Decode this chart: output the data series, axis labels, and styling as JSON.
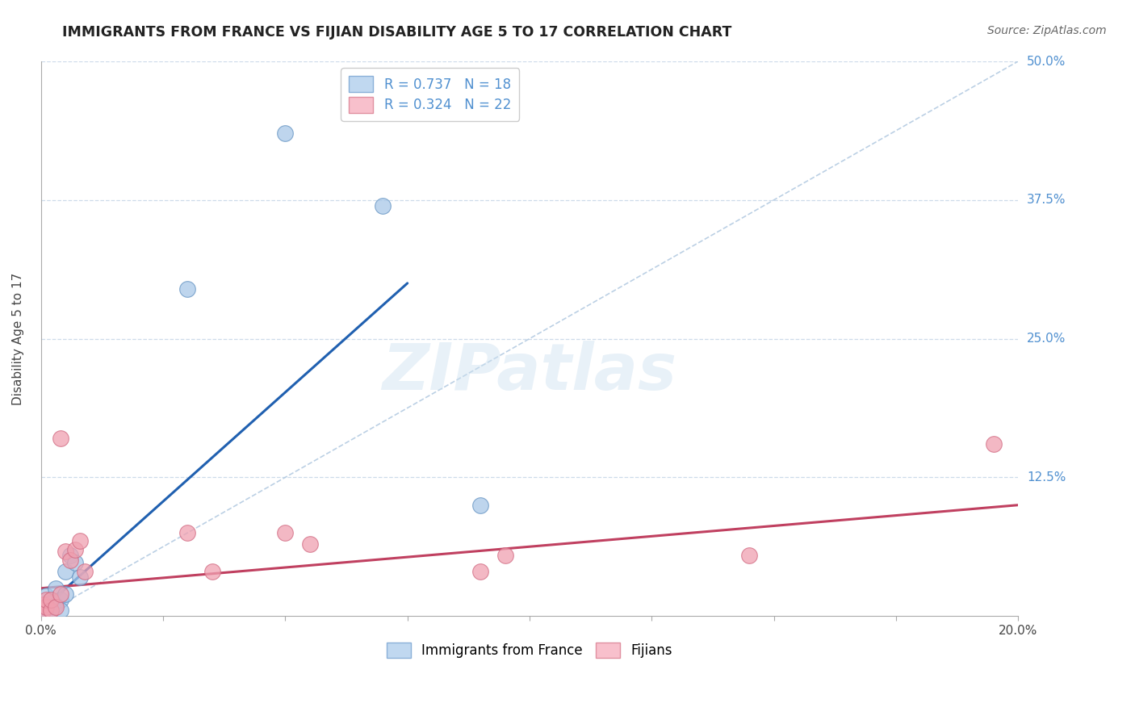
{
  "title": "IMMIGRANTS FROM FRANCE VS FIJIAN DISABILITY AGE 5 TO 17 CORRELATION CHART",
  "source": "Source: ZipAtlas.com",
  "ylabel": "Disability Age 5 to 17",
  "xlim": [
    0.0,
    0.2
  ],
  "ylim": [
    0.0,
    0.5
  ],
  "ytick_positions": [
    0.0,
    0.125,
    0.25,
    0.375,
    0.5
  ],
  "ytick_labels": [
    "",
    "12.5%",
    "25.0%",
    "37.5%",
    "50.0%"
  ],
  "grid_color": "#c8d8e8",
  "background_color": "#ffffff",
  "watermark_text": "ZIPatlas",
  "france_scatter": [
    [
      0.0005,
      0.008
    ],
    [
      0.001,
      0.018
    ],
    [
      0.001,
      0.005
    ],
    [
      0.002,
      0.012
    ],
    [
      0.002,
      0.005
    ],
    [
      0.003,
      0.025
    ],
    [
      0.003,
      0.01
    ],
    [
      0.004,
      0.015
    ],
    [
      0.004,
      0.005
    ],
    [
      0.005,
      0.04
    ],
    [
      0.005,
      0.02
    ],
    [
      0.006,
      0.055
    ],
    [
      0.007,
      0.048
    ],
    [
      0.008,
      0.035
    ],
    [
      0.03,
      0.295
    ],
    [
      0.05,
      0.435
    ],
    [
      0.07,
      0.37
    ],
    [
      0.09,
      0.1
    ]
  ],
  "fijian_scatter": [
    [
      0.0005,
      0.01
    ],
    [
      0.0005,
      0.005
    ],
    [
      0.001,
      0.008
    ],
    [
      0.001,
      0.015
    ],
    [
      0.002,
      0.005
    ],
    [
      0.002,
      0.015
    ],
    [
      0.003,
      0.008
    ],
    [
      0.004,
      0.02
    ],
    [
      0.004,
      0.16
    ],
    [
      0.005,
      0.058
    ],
    [
      0.006,
      0.05
    ],
    [
      0.007,
      0.06
    ],
    [
      0.008,
      0.068
    ],
    [
      0.009,
      0.04
    ],
    [
      0.03,
      0.075
    ],
    [
      0.035,
      0.04
    ],
    [
      0.05,
      0.075
    ],
    [
      0.055,
      0.065
    ],
    [
      0.09,
      0.04
    ],
    [
      0.095,
      0.055
    ],
    [
      0.145,
      0.055
    ],
    [
      0.195,
      0.155
    ]
  ],
  "france_line_x": [
    0.0,
    0.075
  ],
  "france_line_y": [
    0.005,
    0.3
  ],
  "fijian_line_x": [
    0.0,
    0.2
  ],
  "fijian_line_y": [
    0.025,
    0.1
  ],
  "diag_line_x": [
    0.0,
    0.2
  ],
  "diag_line_y": [
    0.0,
    0.5
  ],
  "france_color": "#a8c8e8",
  "fijian_color": "#f0a0b0",
  "france_edge_color": "#6090c0",
  "fijian_edge_color": "#d06880",
  "france_line_color": "#2060b0",
  "fijian_line_color": "#c04060",
  "diag_line_color": "#b0c8e0",
  "legend_label_france": "Immigrants from France",
  "legend_label_fijian": "Fijians",
  "legend_r_france": "R = 0.737",
  "legend_n_france": "N = 18",
  "legend_r_fijian": "R = 0.324",
  "legend_n_fijian": "N = 22",
  "r_color": "#5090d0",
  "n_color": "#e05050"
}
